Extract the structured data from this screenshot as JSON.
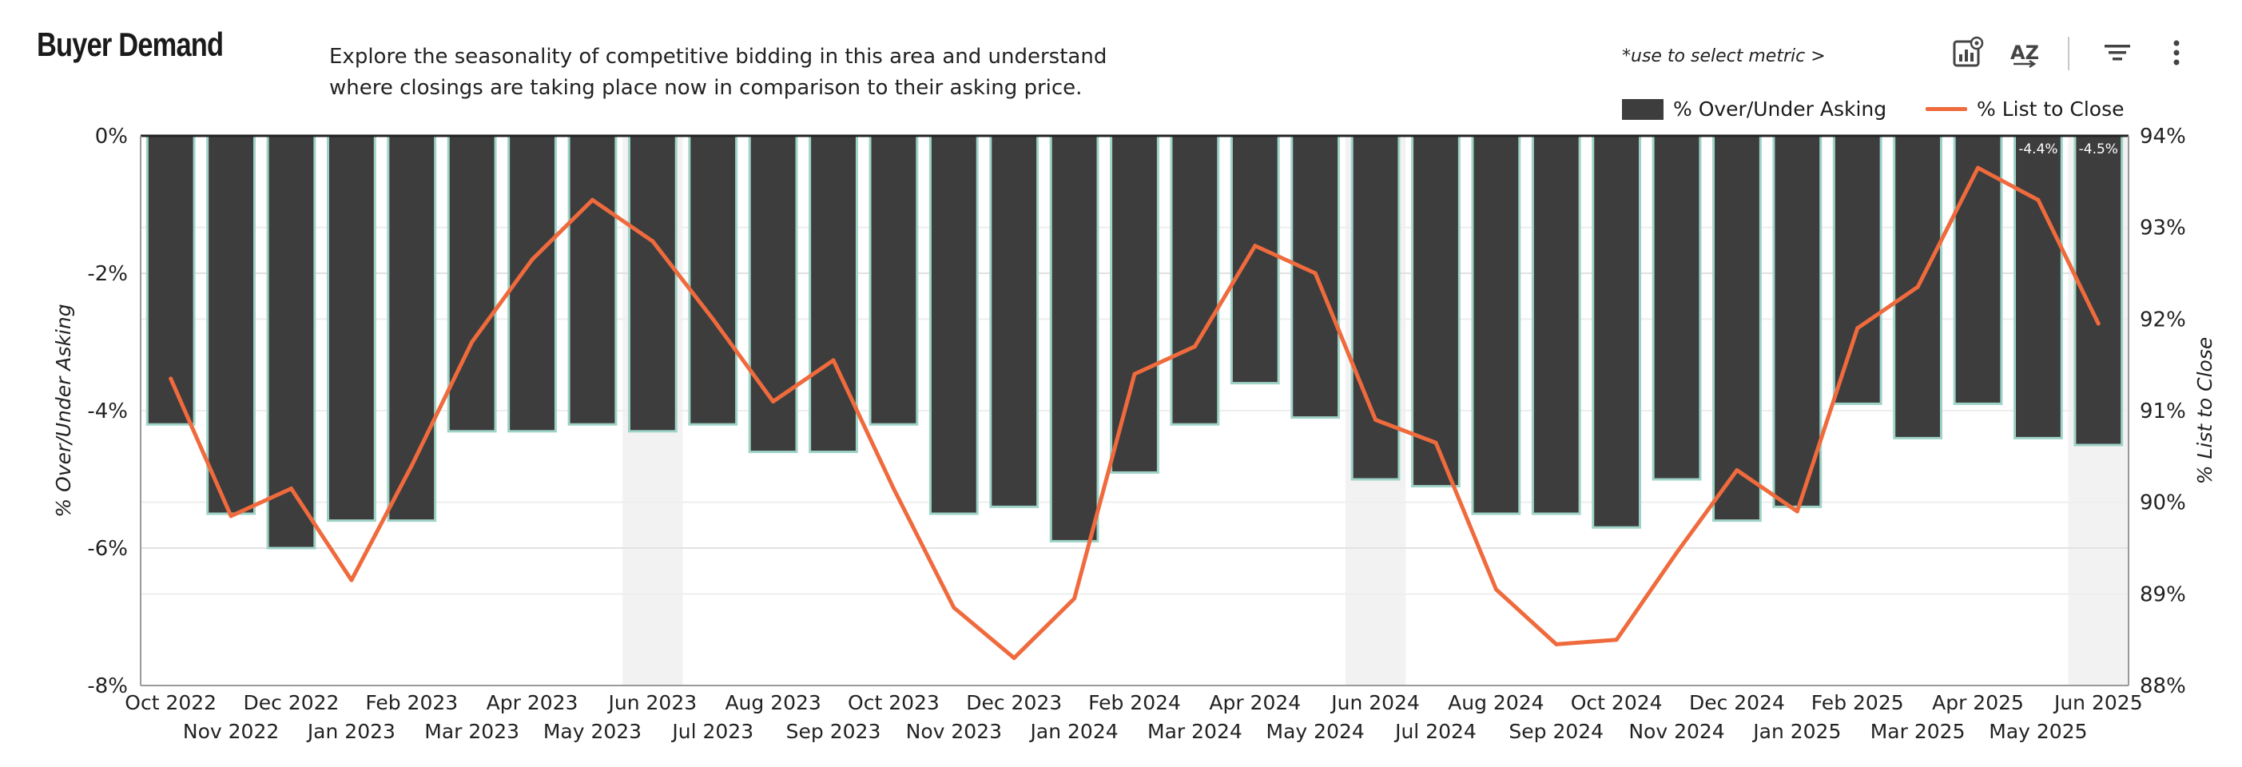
{
  "header": {
    "title": "Buyer Demand",
    "description_line1": "Explore the seasonality of competitive bidding in this area and understand",
    "description_line2": "where closings are taking place now in comparison to their asking price.",
    "metric_hint": "*use to select metric >"
  },
  "toolbar": {
    "icons": [
      "chart-settings-icon",
      "sort-az-icon",
      "filter-icon",
      "more-vert-icon"
    ],
    "sort_label": "AZ"
  },
  "colors": {
    "bar": "#3d3d3d",
    "bar_outline": "#9fd3c7",
    "line": "#ef6a3c",
    "grid": "#e2e2e2",
    "highlight": "#f2f2f2"
  },
  "chart_data": {
    "type": "bar+line",
    "categories": [
      "Oct 2022",
      "Nov 2022",
      "Dec 2022",
      "Jan 2023",
      "Feb 2023",
      "Mar 2023",
      "Apr 2023",
      "May 2023",
      "Jun 2023",
      "Jul 2023",
      "Aug 2023",
      "Sep 2023",
      "Oct 2023",
      "Nov 2023",
      "Dec 2023",
      "Jan 2024",
      "Feb 2024",
      "Mar 2024",
      "Apr 2024",
      "May 2024",
      "Jun 2024",
      "Jul 2024",
      "Aug 2024",
      "Sep 2024",
      "Oct 2024",
      "Nov 2024",
      "Dec 2024",
      "Jan 2025",
      "Feb 2025",
      "Mar 2025",
      "Apr 2025",
      "May 2025",
      "Jun 2025"
    ],
    "series": [
      {
        "name": "% Over/Under Asking",
        "type": "bar",
        "axis": "left",
        "values": [
          -4.2,
          -5.5,
          -6.0,
          -5.6,
          -5.6,
          -4.3,
          -4.3,
          -4.2,
          -4.3,
          -4.2,
          -4.6,
          -4.6,
          -4.2,
          -5.5,
          -5.4,
          -5.9,
          -4.9,
          -4.2,
          -3.6,
          -4.1,
          -5.0,
          -5.1,
          -5.5,
          -5.5,
          -5.7,
          -5.0,
          -5.6,
          -5.4,
          -3.9,
          -4.4,
          -3.9,
          -4.4,
          -4.5
        ]
      },
      {
        "name": "% List to Close",
        "type": "line",
        "axis": "right",
        "values": [
          91.35,
          89.85,
          90.15,
          89.15,
          90.4,
          91.75,
          92.65,
          93.3,
          92.85,
          92.0,
          91.1,
          91.55,
          90.15,
          88.85,
          88.3,
          88.95,
          91.4,
          91.7,
          92.8,
          92.5,
          90.9,
          90.65,
          89.05,
          88.45,
          88.5,
          89.45,
          90.35,
          89.9,
          91.9,
          92.35,
          93.65,
          93.3,
          91.95
        ]
      }
    ],
    "bar_labels": [
      {
        "index": 31,
        "text": "-4.4%"
      },
      {
        "index": 32,
        "text": "-4.5%"
      }
    ],
    "highlighted_categories": [
      "Jun 2023",
      "Jun 2024",
      "Jun 2025"
    ],
    "left_axis": {
      "label": "% Over/Under Asking",
      "ylim": [
        -8,
        0
      ],
      "ticks": [
        "0%",
        "-2%",
        "-4%",
        "-6%",
        "-8%"
      ]
    },
    "right_axis": {
      "label": "% List to Close",
      "ylim": [
        88,
        94
      ],
      "ticks": [
        "94%",
        "93%",
        "92%",
        "91%",
        "90%",
        "89%",
        "88%"
      ]
    },
    "legend": {
      "position": "top-right",
      "entries": [
        "% Over/Under Asking",
        "% List to Close"
      ]
    }
  }
}
